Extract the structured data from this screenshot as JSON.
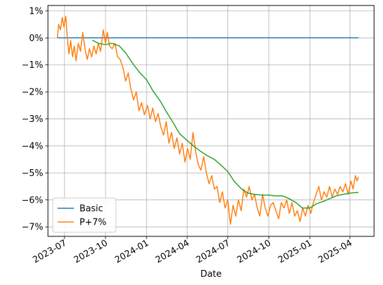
{
  "chart_data": {
    "type": "line",
    "title": "",
    "xlabel": "Date",
    "ylabel": "",
    "xlim": [
      "2023-05-25",
      "2025-05-25"
    ],
    "ylim": [
      -7.35,
      1.2
    ],
    "grid": true,
    "legend_position": "lower-left",
    "x_ticks": [
      {
        "date": "2023-07-01",
        "label": "2023-07"
      },
      {
        "date": "2023-10-01",
        "label": "2023-10"
      },
      {
        "date": "2024-01-01",
        "label": "2024-01"
      },
      {
        "date": "2024-04-01",
        "label": "2024-04"
      },
      {
        "date": "2024-07-01",
        "label": "2024-07"
      },
      {
        "date": "2024-10-01",
        "label": "2024-10"
      },
      {
        "date": "2025-01-01",
        "label": "2025-01"
      },
      {
        "date": "2025-04-01",
        "label": "2025-04"
      }
    ],
    "y_ticks": [
      {
        "value": 1,
        "label": "1%"
      },
      {
        "value": 0,
        "label": "0%"
      },
      {
        "value": -1,
        "label": "−1%"
      },
      {
        "value": -2,
        "label": "−2%"
      },
      {
        "value": -3,
        "label": "−3%"
      },
      {
        "value": -4,
        "label": "−4%"
      },
      {
        "value": -5,
        "label": "−5%"
      },
      {
        "value": -6,
        "label": "−6%"
      },
      {
        "value": -7,
        "label": "−7%"
      }
    ],
    "series": [
      {
        "name": "Basic",
        "color": "#1f77b4",
        "points": [
          [
            "2023-06-15",
            0
          ],
          [
            "2025-04-20",
            0
          ]
        ]
      },
      {
        "name": "P+7%",
        "color": "#ff7f0e",
        "points": [
          [
            "2023-06-15",
            0.0
          ],
          [
            "2023-06-18",
            0.5
          ],
          [
            "2023-06-22",
            0.3
          ],
          [
            "2023-06-26",
            0.75
          ],
          [
            "2023-06-30",
            0.4
          ],
          [
            "2023-07-04",
            0.8
          ],
          [
            "2023-07-07",
            0.1
          ],
          [
            "2023-07-11",
            -0.6
          ],
          [
            "2023-07-15",
            -0.1
          ],
          [
            "2023-07-19",
            -0.7
          ],
          [
            "2023-07-23",
            -0.3
          ],
          [
            "2023-07-27",
            -0.85
          ],
          [
            "2023-08-01",
            -0.2
          ],
          [
            "2023-08-06",
            -0.5
          ],
          [
            "2023-08-11",
            0.2
          ],
          [
            "2023-08-16",
            -0.4
          ],
          [
            "2023-08-21",
            -0.8
          ],
          [
            "2023-08-26",
            -0.4
          ],
          [
            "2023-08-31",
            -0.7
          ],
          [
            "2023-09-05",
            -0.3
          ],
          [
            "2023-09-10",
            -0.6
          ],
          [
            "2023-09-15",
            -0.2
          ],
          [
            "2023-09-20",
            -0.5
          ],
          [
            "2023-09-26",
            0.3
          ],
          [
            "2023-10-01",
            -0.2
          ],
          [
            "2023-10-05",
            0.2
          ],
          [
            "2023-10-10",
            -0.3
          ],
          [
            "2023-10-16",
            -0.4
          ],
          [
            "2023-10-22",
            -0.2
          ],
          [
            "2023-10-28",
            -0.7
          ],
          [
            "2023-11-03",
            -0.8
          ],
          [
            "2023-11-09",
            -1.1
          ],
          [
            "2023-11-15",
            -1.6
          ],
          [
            "2023-11-21",
            -1.3
          ],
          [
            "2023-11-27",
            -1.9
          ],
          [
            "2023-12-03",
            -2.3
          ],
          [
            "2023-12-09",
            -2.0
          ],
          [
            "2023-12-15",
            -2.7
          ],
          [
            "2023-12-21",
            -2.4
          ],
          [
            "2023-12-27",
            -2.85
          ],
          [
            "2024-01-03",
            -2.5
          ],
          [
            "2024-01-09",
            -3.0
          ],
          [
            "2024-01-15",
            -2.6
          ],
          [
            "2024-01-21",
            -3.1
          ],
          [
            "2024-01-27",
            -2.8
          ],
          [
            "2024-02-02",
            -3.3
          ],
          [
            "2024-02-08",
            -3.6
          ],
          [
            "2024-02-14",
            -3.1
          ],
          [
            "2024-02-20",
            -3.9
          ],
          [
            "2024-02-26",
            -3.5
          ],
          [
            "2024-03-03",
            -4.1
          ],
          [
            "2024-03-09",
            -3.7
          ],
          [
            "2024-03-15",
            -4.3
          ],
          [
            "2024-03-21",
            -3.9
          ],
          [
            "2024-03-27",
            -4.6
          ],
          [
            "2024-04-02",
            -4.1
          ],
          [
            "2024-04-08",
            -4.5
          ],
          [
            "2024-04-14",
            -3.5
          ],
          [
            "2024-04-20",
            -4.2
          ],
          [
            "2024-04-26",
            -4.7
          ],
          [
            "2024-05-02",
            -4.9
          ],
          [
            "2024-05-08",
            -4.4
          ],
          [
            "2024-05-14",
            -5.0
          ],
          [
            "2024-05-20",
            -5.4
          ],
          [
            "2024-05-26",
            -5.1
          ],
          [
            "2024-06-01",
            -5.6
          ],
          [
            "2024-06-07",
            -5.5
          ],
          [
            "2024-06-13",
            -6.1
          ],
          [
            "2024-06-19",
            -5.7
          ],
          [
            "2024-06-25",
            -6.3
          ],
          [
            "2024-07-01",
            -6.0
          ],
          [
            "2024-07-07",
            -6.9
          ],
          [
            "2024-07-13",
            -6.2
          ],
          [
            "2024-07-19",
            -6.6
          ],
          [
            "2024-07-25",
            -6.0
          ],
          [
            "2024-07-31",
            -6.4
          ],
          [
            "2024-08-06",
            -5.6
          ],
          [
            "2024-08-12",
            -5.9
          ],
          [
            "2024-08-18",
            -5.5
          ],
          [
            "2024-08-24",
            -6.0
          ],
          [
            "2024-08-30",
            -5.8
          ],
          [
            "2024-09-05",
            -6.3
          ],
          [
            "2024-09-11",
            -6.6
          ],
          [
            "2024-09-17",
            -5.8
          ],
          [
            "2024-09-23",
            -6.3
          ],
          [
            "2024-09-29",
            -6.6
          ],
          [
            "2024-10-05",
            -6.2
          ],
          [
            "2024-10-11",
            -6.1
          ],
          [
            "2024-10-17",
            -6.4
          ],
          [
            "2024-10-23",
            -6.7
          ],
          [
            "2024-10-29",
            -6.1
          ],
          [
            "2024-11-04",
            -6.3
          ],
          [
            "2024-11-10",
            -6.0
          ],
          [
            "2024-11-16",
            -6.5
          ],
          [
            "2024-11-22",
            -6.1
          ],
          [
            "2024-11-28",
            -6.6
          ],
          [
            "2024-12-04",
            -6.4
          ],
          [
            "2024-12-10",
            -6.8
          ],
          [
            "2024-12-16",
            -6.3
          ],
          [
            "2024-12-22",
            -6.6
          ],
          [
            "2024-12-28",
            -6.2
          ],
          [
            "2025-01-03",
            -6.5
          ],
          [
            "2025-01-09",
            -6.1
          ],
          [
            "2025-01-15",
            -5.8
          ],
          [
            "2025-01-21",
            -5.5
          ],
          [
            "2025-01-27",
            -6.0
          ],
          [
            "2025-02-02",
            -5.7
          ],
          [
            "2025-02-08",
            -5.9
          ],
          [
            "2025-02-14",
            -5.5
          ],
          [
            "2025-02-20",
            -5.9
          ],
          [
            "2025-02-26",
            -5.6
          ],
          [
            "2025-03-04",
            -5.8
          ],
          [
            "2025-03-10",
            -5.5
          ],
          [
            "2025-03-16",
            -5.7
          ],
          [
            "2025-03-22",
            -5.4
          ],
          [
            "2025-03-28",
            -5.8
          ],
          [
            "2025-04-03",
            -5.3
          ],
          [
            "2025-04-08",
            -5.6
          ],
          [
            "2025-04-13",
            -5.1
          ],
          [
            "2025-04-17",
            -5.3
          ],
          [
            "2025-04-20",
            -5.15
          ]
        ]
      },
      {
        "name": "",
        "color": "#2ca02c",
        "points": [
          [
            "2023-09-01",
            -0.08
          ],
          [
            "2023-09-15",
            -0.2
          ],
          [
            "2023-10-01",
            -0.25
          ],
          [
            "2023-10-15",
            -0.2
          ],
          [
            "2023-11-01",
            -0.3
          ],
          [
            "2023-11-15",
            -0.55
          ],
          [
            "2023-12-01",
            -0.95
          ],
          [
            "2023-12-15",
            -1.25
          ],
          [
            "2024-01-01",
            -1.55
          ],
          [
            "2024-01-15",
            -1.95
          ],
          [
            "2024-02-01",
            -2.35
          ],
          [
            "2024-02-15",
            -2.75
          ],
          [
            "2024-03-01",
            -3.15
          ],
          [
            "2024-03-15",
            -3.55
          ],
          [
            "2024-04-01",
            -3.8
          ],
          [
            "2024-04-15",
            -4.0
          ],
          [
            "2024-05-01",
            -4.2
          ],
          [
            "2024-05-15",
            -4.35
          ],
          [
            "2024-06-01",
            -4.5
          ],
          [
            "2024-06-15",
            -4.7
          ],
          [
            "2024-07-01",
            -4.95
          ],
          [
            "2024-07-15",
            -5.3
          ],
          [
            "2024-08-01",
            -5.6
          ],
          [
            "2024-08-15",
            -5.75
          ],
          [
            "2024-09-01",
            -5.8
          ],
          [
            "2024-09-15",
            -5.82
          ],
          [
            "2024-10-01",
            -5.82
          ],
          [
            "2024-10-15",
            -5.85
          ],
          [
            "2024-11-01",
            -5.85
          ],
          [
            "2024-11-15",
            -5.95
          ],
          [
            "2024-12-01",
            -6.1
          ],
          [
            "2024-12-15",
            -6.3
          ],
          [
            "2025-01-01",
            -6.3
          ],
          [
            "2025-01-15",
            -6.15
          ],
          [
            "2025-02-01",
            -6.05
          ],
          [
            "2025-02-15",
            -5.95
          ],
          [
            "2025-03-01",
            -5.85
          ],
          [
            "2025-03-15",
            -5.8
          ],
          [
            "2025-04-01",
            -5.75
          ],
          [
            "2025-04-20",
            -5.72
          ]
        ]
      }
    ]
  }
}
